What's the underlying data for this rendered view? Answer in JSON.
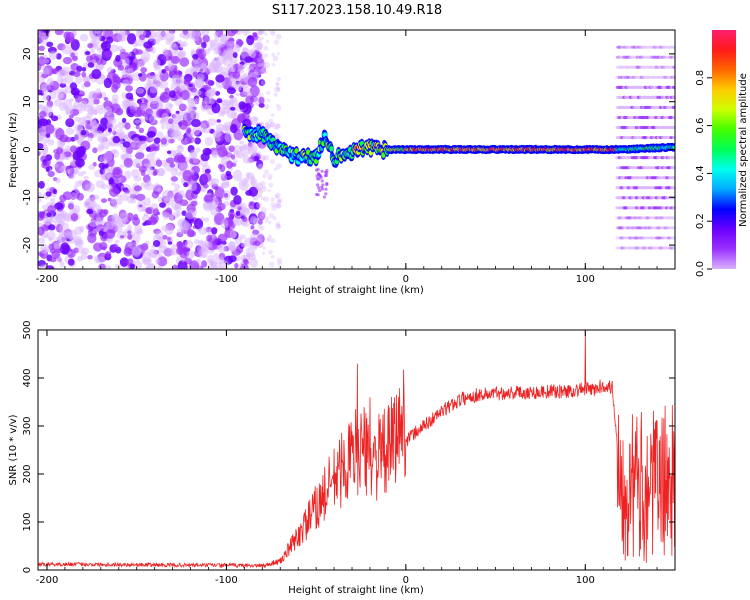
{
  "chart_data": {
    "title": "S117.2023.158.10.49.R18",
    "panels": [
      {
        "type": "heatmap",
        "xlabel": "Height of straight line (km)",
        "ylabel": "Frequency (Hz)",
        "xlim": [
          -205,
          150
        ],
        "ylim": [
          -25,
          25
        ],
        "xticks": [
          "-200",
          "-100",
          "0",
          "100"
        ],
        "yticks": [
          "-20",
          "-10",
          "0",
          "10",
          "20"
        ],
        "colorbar": {
          "label": "Normalized spectral amplitude",
          "range": [
            0,
            1
          ],
          "ticks": [
            "0.0",
            "0.2",
            "0.4",
            "0.6",
            "0.8"
          ],
          "colormap": [
            "#d9b3ff",
            "#9b30ff",
            "#6a00ff",
            "#0000ff",
            "#00aaff",
            "#00ffee",
            "#00ff55",
            "#44ff00",
            "#ccff00",
            "#ffcc00",
            "#ff6600",
            "#ff1a1a",
            "#ff1e6e"
          ]
        },
        "features": {
          "noise_region_x": [
            -205,
            -80
          ],
          "carrier": [
            {
              "x": -90,
              "y": 4
            },
            {
              "x": -80,
              "y": 3
            },
            {
              "x": -70,
              "y": 0
            },
            {
              "x": -60,
              "y": -1.5
            },
            {
              "x": -50,
              "y": -1.5
            },
            {
              "x": -45,
              "y": 3
            },
            {
              "x": -40,
              "y": -2
            },
            {
              "x": -35,
              "y": -1
            },
            {
              "x": -25,
              "y": 0.5
            },
            {
              "x": -15,
              "y": 0
            },
            {
              "x": -5,
              "y": 0
            },
            {
              "x": 0,
              "y": 0
            },
            {
              "x": 50,
              "y": 0
            },
            {
              "x": 100,
              "y": 0
            },
            {
              "x": 120,
              "y": 0
            },
            {
              "x": 150,
              "y": 0.5
            }
          ],
          "harmonic_region_x": [
            118,
            150
          ]
        }
      },
      {
        "type": "line",
        "xlabel": "Height of straight line (km)",
        "ylabel": "SNR (10 * v/v)",
        "xlim": [
          -205,
          150
        ],
        "ylim": [
          0,
          500
        ],
        "xticks": [
          "-200",
          "-100",
          "0",
          "100"
        ],
        "yticks": [
          "0",
          "100",
          "200",
          "300",
          "400",
          "500"
        ],
        "color": "#ee2222",
        "series": [
          {
            "x": [
              -205,
              -180,
              -150,
              -120,
              -100,
              -80,
              -70,
              -60,
              -50,
              -40,
              -30,
              -25,
              -20,
              -10,
              0,
              10,
              20,
              30,
              40,
              50,
              60,
              70,
              80,
              90,
              100,
              105,
              110,
              115,
              120,
              130,
              140,
              150
            ],
            "y": [
              12,
              12,
              11,
              10,
              10,
              9,
              15,
              60,
              110,
              160,
              200,
              220,
              190,
              210,
              270,
              300,
              330,
              355,
              365,
              368,
              370,
              370,
              372,
              372,
              378,
              375,
              385,
              380,
              180,
              170,
              180,
              190
            ]
          }
        ],
        "annotations": {
          "spikes": [
            {
              "x": -27,
              "y": 430
            },
            {
              "x": 100,
              "y": 500
            },
            {
              "x": -20,
              "y": 360
            }
          ]
        }
      }
    ]
  }
}
